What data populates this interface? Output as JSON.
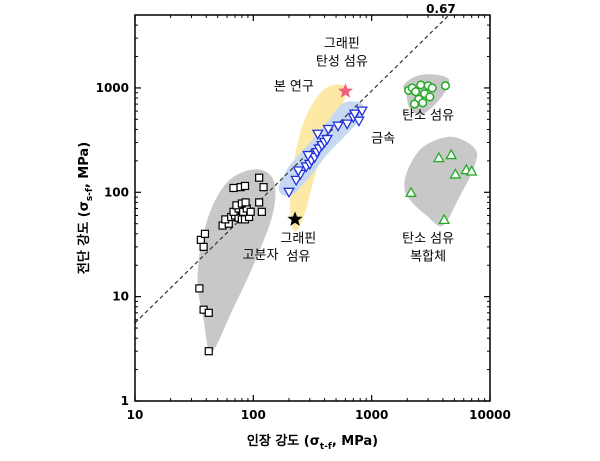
{
  "chart_data": {
    "type": "scatter",
    "xlabel": {
      "prefix": "인장 강도 (",
      "symbol": "σ",
      "sub": "t-f",
      "suffix": ", MPa)"
    },
    "ylabel": {
      "prefix": "전단 강도 (",
      "symbol": "σ",
      "sub": "s-f",
      "suffix": ", MPa)"
    },
    "x_scale": "log",
    "y_scale": "log",
    "xlim": [
      10,
      10000
    ],
    "ylim": [
      1,
      5000
    ],
    "x_ticks": [
      {
        "value": 10,
        "label": "10"
      },
      {
        "value": 100,
        "label": "100"
      },
      {
        "value": 1000,
        "label": "1000"
      },
      {
        "value": 10000,
        "label": "10000"
      }
    ],
    "y_ticks": [
      {
        "value": 1,
        "label": "1"
      },
      {
        "value": 10,
        "label": "10"
      },
      {
        "value": 100,
        "label": "100"
      },
      {
        "value": 1000,
        "label": "1000"
      }
    ],
    "trend_line": {
      "slope_label": "0.67",
      "points": [
        [
          10,
          5.6
        ],
        [
          4500,
          5000
        ]
      ],
      "style": "dashed"
    },
    "regions": [
      {
        "name": "고분자",
        "color": "#c8c8c8",
        "outline": [
          [
            42,
            3.0
          ],
          [
            38,
            6
          ],
          [
            34,
            12
          ],
          [
            35,
            25
          ],
          [
            42,
            60
          ],
          [
            55,
            110
          ],
          [
            75,
            150
          ],
          [
            115,
            165
          ],
          [
            150,
            125
          ],
          [
            145,
            60
          ],
          [
            100,
            20
          ],
          [
            65,
            7
          ],
          [
            48,
            3.3
          ]
        ]
      },
      {
        "name": "본 연구",
        "color": "#fde9a6",
        "outline": [
          [
            215,
            45
          ],
          [
            205,
            80
          ],
          [
            225,
            220
          ],
          [
            265,
            460
          ],
          [
            340,
            800
          ],
          [
            450,
            1050
          ],
          [
            610,
            1000
          ],
          [
            540,
            600
          ],
          [
            430,
            360
          ],
          [
            340,
            160
          ],
          [
            280,
            70
          ],
          [
            240,
            45
          ]
        ]
      },
      {
        "name": "금속",
        "color": "#c7d9f0",
        "outline": [
          [
            175,
            95
          ],
          [
            165,
            115
          ],
          [
            195,
            170
          ],
          [
            260,
            250
          ],
          [
            390,
            420
          ],
          [
            560,
            700
          ],
          [
            800,
            720
          ],
          [
            860,
            560
          ],
          [
            600,
            350
          ],
          [
            420,
            230
          ],
          [
            300,
            140
          ],
          [
            215,
            95
          ]
        ]
      },
      {
        "name": "탄소 섬유",
        "color": "#c8c8c8",
        "outline": [
          [
            1950,
            900
          ],
          [
            1850,
            1050
          ],
          [
            2300,
            1280
          ],
          [
            3200,
            1350
          ],
          [
            4500,
            1200
          ],
          [
            3900,
            820
          ],
          [
            2700,
            560
          ],
          [
            2100,
            640
          ]
        ]
      },
      {
        "name": "탄소 섬유 복합체",
        "color": "#c8c8c8",
        "outline": [
          [
            1900,
            105
          ],
          [
            2000,
            160
          ],
          [
            2700,
            270
          ],
          [
            4700,
            340
          ],
          [
            7500,
            260
          ],
          [
            7300,
            170
          ],
          [
            5500,
            90
          ],
          [
            4000,
            48
          ],
          [
            2900,
            60
          ],
          [
            2200,
            80
          ]
        ]
      }
    ],
    "series": [
      {
        "name": "고분자",
        "marker": "square",
        "color": "#000000",
        "points": [
          [
            42,
            3
          ],
          [
            38,
            7.5
          ],
          [
            42,
            7
          ],
          [
            35,
            12
          ],
          [
            38,
            30
          ],
          [
            36,
            35
          ],
          [
            39,
            40
          ],
          [
            55,
            48
          ],
          [
            62,
            50
          ],
          [
            58,
            55
          ],
          [
            65,
            58
          ],
          [
            70,
            60
          ],
          [
            75,
            57
          ],
          [
            80,
            55
          ],
          [
            85,
            55
          ],
          [
            92,
            58
          ],
          [
            68,
            65
          ],
          [
            75,
            70
          ],
          [
            82,
            65
          ],
          [
            88,
            70
          ],
          [
            95,
            65
          ],
          [
            72,
            75
          ],
          [
            80,
            78
          ],
          [
            86,
            80
          ],
          [
            118,
            65
          ],
          [
            112,
            80
          ],
          [
            68,
            110
          ],
          [
            78,
            112
          ],
          [
            85,
            115
          ],
          [
            122,
            112
          ],
          [
            112,
            138
          ]
        ]
      },
      {
        "name": "금속",
        "marker": "triangle-down",
        "color": "#2233dd",
        "points": [
          [
            200,
            100
          ],
          [
            230,
            130
          ],
          [
            250,
            148
          ],
          [
            240,
            160
          ],
          [
            280,
            175
          ],
          [
            300,
            185
          ],
          [
            310,
            200
          ],
          [
            330,
            215
          ],
          [
            290,
            225
          ],
          [
            345,
            240
          ],
          [
            360,
            260
          ],
          [
            380,
            280
          ],
          [
            400,
            300
          ],
          [
            420,
            320
          ],
          [
            430,
            400
          ],
          [
            350,
            360
          ],
          [
            520,
            430
          ],
          [
            620,
            450
          ],
          [
            700,
            520
          ],
          [
            780,
            480
          ],
          [
            720,
            560
          ],
          [
            830,
            600
          ]
        ]
      },
      {
        "name": "탄소 섬유",
        "marker": "circle",
        "color": "#22aa22",
        "points": [
          [
            2050,
            950
          ],
          [
            2200,
            1000
          ],
          [
            2600,
            1070
          ],
          [
            3000,
            1050
          ],
          [
            3250,
            1000
          ],
          [
            4200,
            1050
          ],
          [
            2350,
            920
          ],
          [
            2800,
            880
          ],
          [
            3100,
            820
          ],
          [
            2500,
            780
          ],
          [
            2700,
            720
          ],
          [
            2300,
            700
          ]
        ]
      },
      {
        "name": "탄소 섬유 복합체",
        "marker": "triangle-up",
        "color": "#22aa22",
        "points": [
          [
            2150,
            100
          ],
          [
            3700,
            215
          ],
          [
            4700,
            230
          ],
          [
            5100,
            150
          ],
          [
            6300,
            165
          ],
          [
            7000,
            160
          ],
          [
            4100,
            55
          ]
        ]
      },
      {
        "name": "그래핀 섬유",
        "marker": "star",
        "color": "#000000",
        "points": [
          [
            225,
            55
          ]
        ]
      },
      {
        "name": "그래핀 탄성 섬유",
        "marker": "star",
        "color": "#f0607a",
        "points": [
          [
            600,
            930
          ]
        ]
      }
    ],
    "annotations": [
      {
        "lines": [
          "그래핀",
          "탄성 섬유"
        ],
        "at": [
          560,
          2450
        ]
      },
      {
        "lines": [
          "본 연구"
        ],
        "at": [
          220,
          950
        ]
      },
      {
        "lines": [
          "금속"
        ],
        "at": [
          1250,
          300
        ]
      },
      {
        "lines": [
          "탄소 섬유"
        ],
        "at": [
          3000,
          500
        ]
      },
      {
        "lines": [
          "그래핀",
          "섬유"
        ],
        "at": [
          240,
          33
        ]
      },
      {
        "lines": [
          "고분자"
        ],
        "at": [
          115,
          23
        ]
      },
      {
        "lines": [
          "탄소 섬유",
          "복합체"
        ],
        "at": [
          3000,
          33
        ]
      }
    ]
  }
}
